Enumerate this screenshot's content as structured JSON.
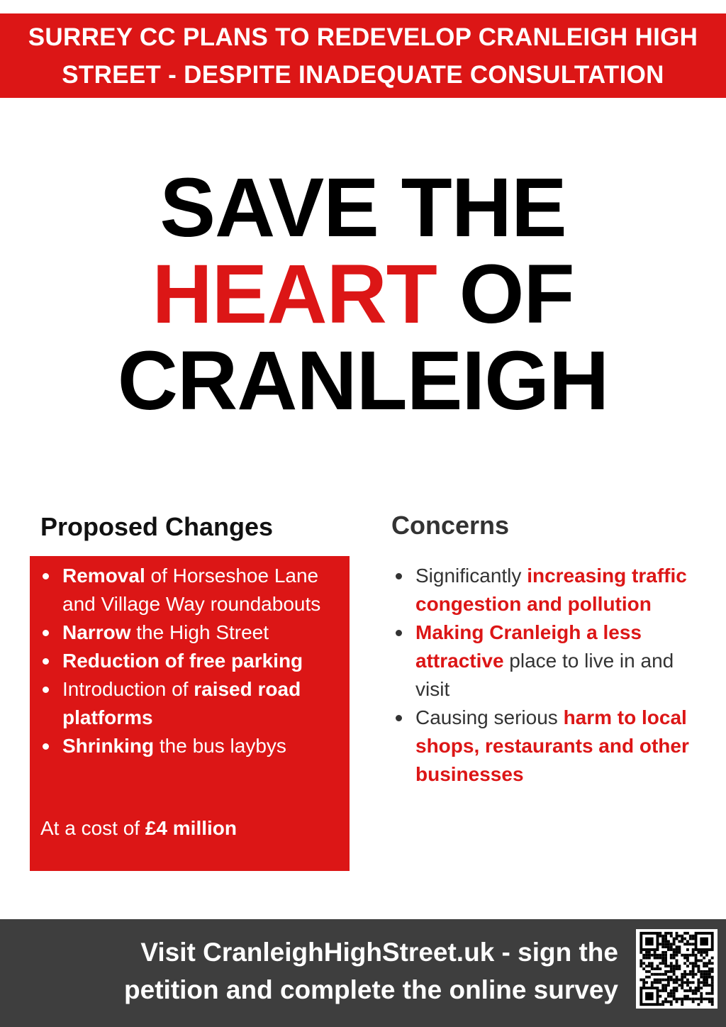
{
  "banner": {
    "line1": "SURREY CC PLANS TO REDEVELOP CRANLEIGH HIGH",
    "line2": "STREET - DESPITE INADEQUATE CONSULTATION"
  },
  "title": {
    "line1": "SAVE THE",
    "line2_red": "HEART",
    "line2_rest": " OF",
    "line3": "CRANLEIGH"
  },
  "proposed": {
    "heading": "Proposed Changes",
    "items": [
      {
        "bold": "Removal",
        "rest": " of Horseshoe Lane and Village Way roundabouts"
      },
      {
        "bold": "Narrow",
        "rest": " the High Street"
      },
      {
        "bold": "Reduction of free parking",
        "rest": ""
      },
      {
        "pre": "Introduction of ",
        "bold": "raised road platforms"
      },
      {
        "bold": "Shrinking",
        "rest": " the bus laybys"
      }
    ],
    "cost_pre": "At a cost of ",
    "cost_bold": "£4 million"
  },
  "concerns": {
    "heading": "Concerns",
    "items": [
      {
        "pre": "Significantly ",
        "bold": "increasing traffic congestion and pollution"
      },
      {
        "bold": "Making Cranleigh a less attractive",
        "rest": " place to live in and visit"
      },
      {
        "pre": "Causing serious ",
        "bold": "harm to local shops, restaurants and other businesses"
      }
    ]
  },
  "footer": {
    "line1": "Visit CranleighHighStreet.uk - sign the",
    "line2": "petition and complete the online survey",
    "qr_icon": "qr-code-icon"
  },
  "colors": {
    "red": "#dc1616",
    "dark": "#3e3e3e"
  }
}
